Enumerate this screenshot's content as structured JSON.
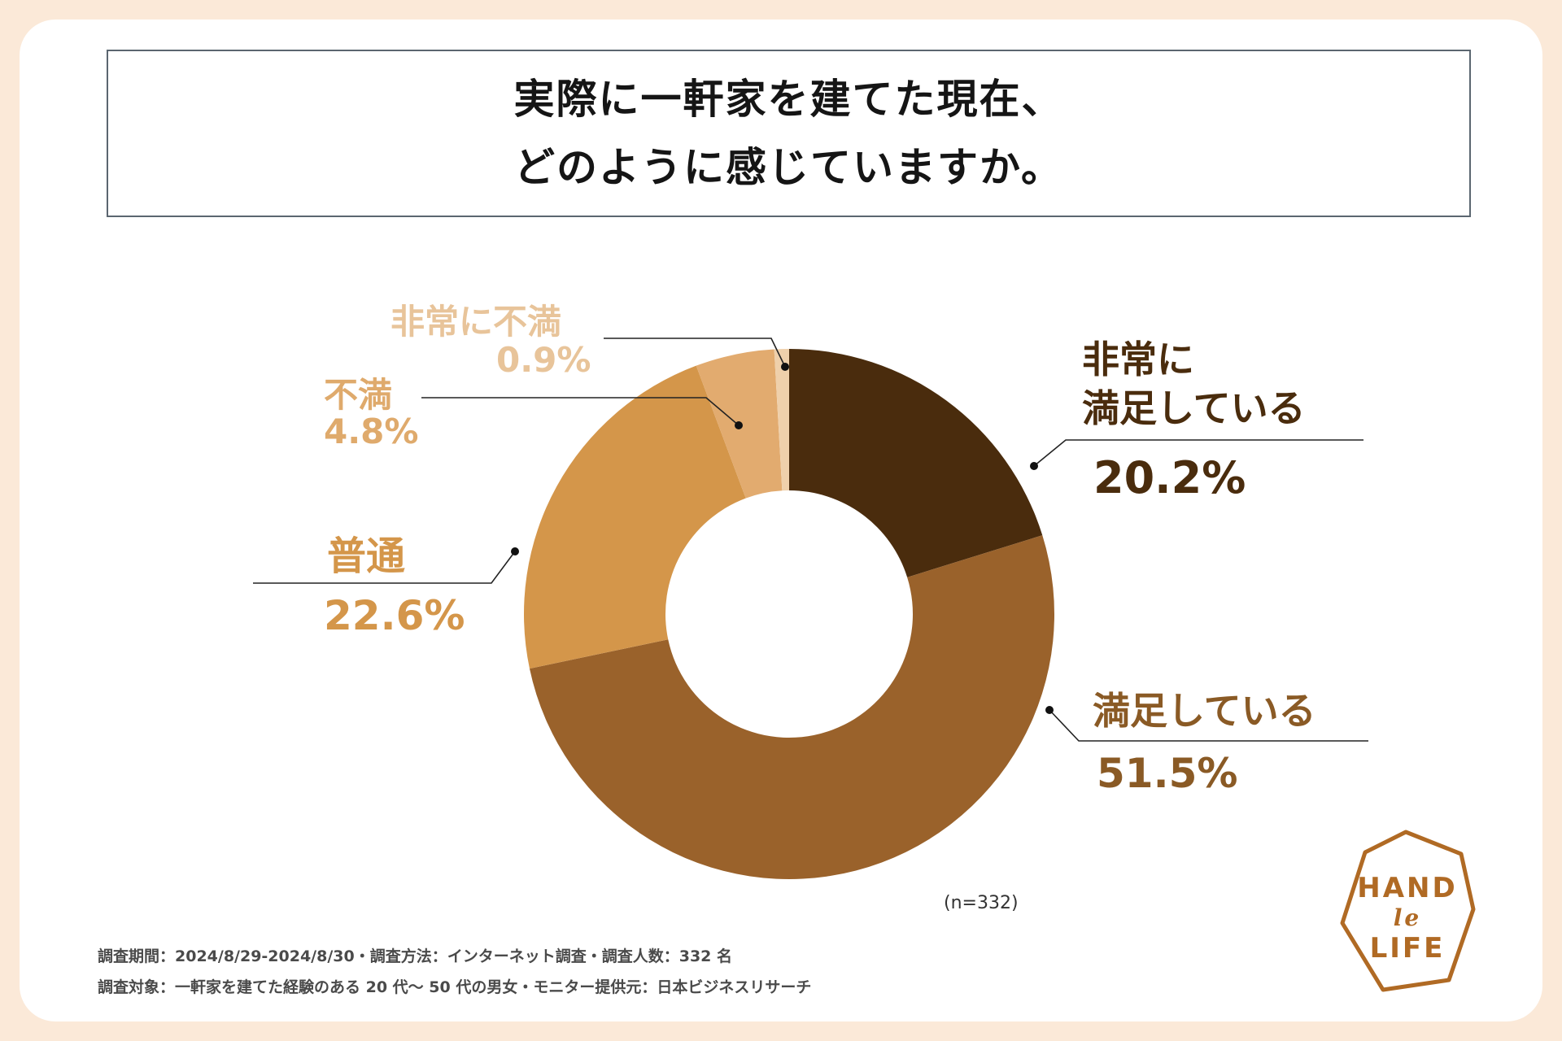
{
  "title": {
    "line1": "実際に一軒家を建てた現在、",
    "line2": "どのように感じていますか。"
  },
  "chart_data": {
    "type": "pie",
    "donut": true,
    "categories": [
      "非常に満足している",
      "満足している",
      "普通",
      "不満",
      "非常に不満"
    ],
    "values": [
      20.2,
      51.5,
      22.6,
      4.8,
      0.9
    ],
    "colors": [
      "#4a2c0d",
      "#9a622b",
      "#d4964a",
      "#e2ab6f",
      "#efd0ab"
    ],
    "labels": [
      {
        "name_lines": [
          "非常に",
          "満足している"
        ],
        "value_text": "20.2%"
      },
      {
        "name_lines": [
          "満足している"
        ],
        "value_text": "51.5%"
      },
      {
        "name_lines": [
          "普通"
        ],
        "value_text": "22.6%"
      },
      {
        "name_lines": [
          "不満"
        ],
        "value_text": "4.8%"
      },
      {
        "name_lines": [
          "非常に不満"
        ],
        "value_text": "0.9%"
      }
    ],
    "label_colors": [
      "#4a2c0d",
      "#8a5a25",
      "#d4964a",
      "#dfaa6c",
      "#e8c49a"
    ],
    "sample": "(n=332)"
  },
  "footer": {
    "line1": "調査期間：2024/8/29-2024/8/30・調査方法：インターネット調査・調査人数：332 名",
    "line2": "調査対象：一軒家を建てた経験のある 20 代〜 50 代の男女・モニター提供元：日本ビジネスリサーチ"
  },
  "logo": {
    "line1": "HAND",
    "line2": "le",
    "line3": "LIFE",
    "color": "#b06a24"
  }
}
